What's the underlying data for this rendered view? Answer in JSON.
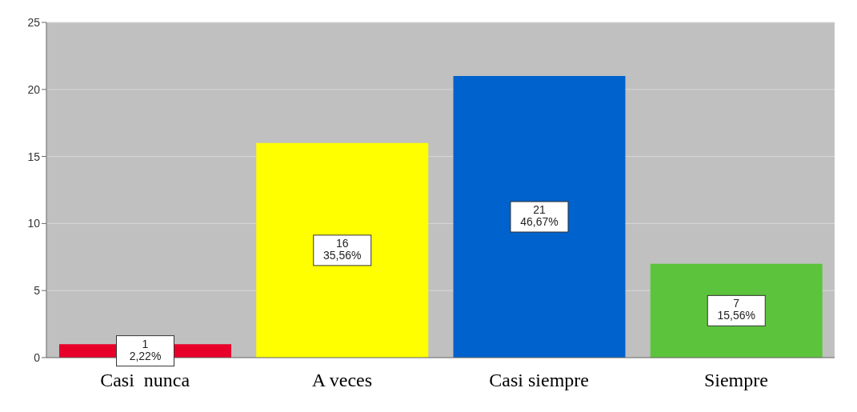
{
  "chart_data": {
    "type": "bar",
    "categories": [
      "Casi  nunca",
      "A veces",
      "Casi siempre",
      "Siempre"
    ],
    "values": [
      1,
      16,
      21,
      7
    ],
    "colors": [
      "#e8002a",
      "#ffff00",
      "#0062cc",
      "#5cc43c"
    ],
    "value_labels": [
      "1 2,22%",
      "16 35,56%",
      "21 46,67%",
      "7 15,56%"
    ],
    "ylim": [
      0,
      25
    ],
    "yticks": [
      0,
      5,
      10,
      15,
      20,
      25
    ],
    "grid": "y",
    "legend": false
  }
}
